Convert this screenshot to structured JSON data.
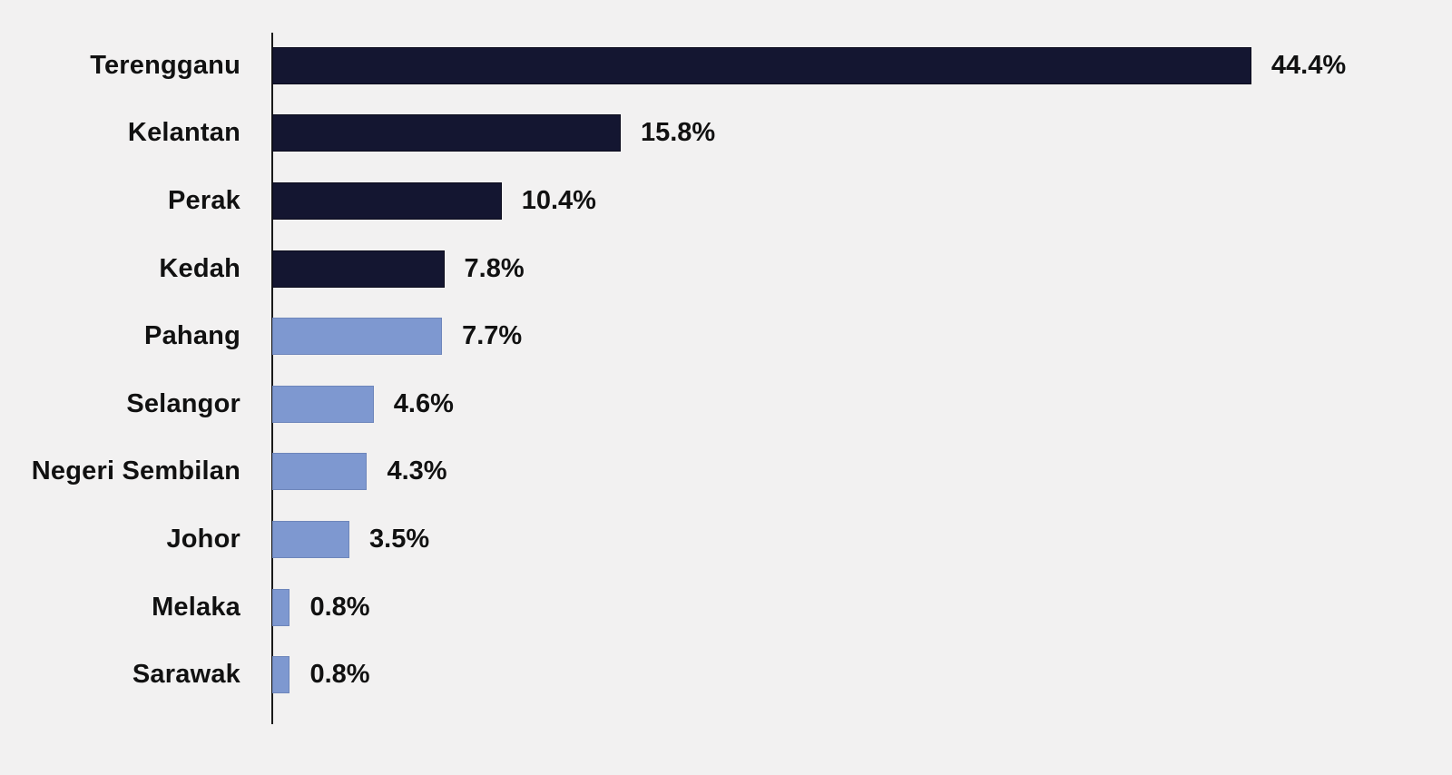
{
  "chart_data": {
    "type": "bar",
    "orientation": "horizontal",
    "title": "",
    "xlabel": "",
    "ylabel": "",
    "grid": false,
    "legend": null,
    "xlim": [
      0,
      46
    ],
    "categories": [
      "Terengganu",
      "Kelantan",
      "Perak",
      "Kedah",
      "Pahang",
      "Selangor",
      "Negeri Sembilan",
      "Johor",
      "Melaka",
      "Sarawak"
    ],
    "values": [
      44.4,
      15.8,
      10.4,
      7.8,
      7.7,
      4.6,
      4.3,
      3.5,
      0.8,
      0.8
    ],
    "value_labels": [
      "44.4%",
      "15.8%",
      "10.4%",
      "7.8%",
      "7.7%",
      "4.6%",
      "4.3%",
      "3.5%",
      "0.8%",
      "0.8%"
    ],
    "bar_color_keys": [
      "dark",
      "dark",
      "dark",
      "dark",
      "light",
      "light",
      "light",
      "light",
      "light",
      "light"
    ],
    "colors": {
      "dark": "#141631",
      "light": "#7e98d0",
      "background": "#f2f1f1",
      "axis": "#1a1a1a",
      "text": "#111111"
    }
  }
}
